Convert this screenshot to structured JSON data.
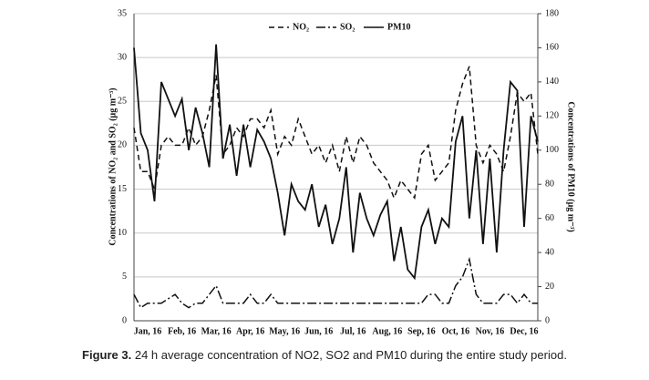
{
  "chart_data": {
    "type": "line",
    "ylabel": "Concentrations of NO₂ and SO₂ (μg m⁻³)",
    "y2label": "Concentrations of PM10 (μg m⁻³)",
    "categories": [
      null,
      null,
      "Jan, 16",
      null,
      null,
      null,
      null,
      "Feb, 16",
      null,
      null,
      null,
      null,
      "Mar, 16",
      null,
      null,
      null,
      null,
      "Apr, 16",
      null,
      null,
      null,
      null,
      "May, 16",
      null,
      null,
      null,
      null,
      "Jun, 16",
      null,
      null,
      null,
      null,
      "Jul, 16",
      null,
      null,
      null,
      null,
      "Aug, 16",
      null,
      null,
      null,
      null,
      "Sep, 16",
      null,
      null,
      null,
      null,
      "Oct, 16",
      null,
      null,
      null,
      null,
      "Nov, 16",
      null,
      null,
      null,
      null,
      "Dec, 16",
      null,
      null
    ],
    "series": [
      {
        "name": "NO₂",
        "color": "#111111",
        "dash": "6,4",
        "values": [
          22,
          17,
          17,
          15,
          20,
          21,
          20,
          20,
          22,
          20,
          21,
          24,
          28,
          19,
          20,
          22,
          21,
          23,
          23,
          22,
          24,
          19,
          21,
          20,
          23,
          21,
          19,
          20,
          18,
          20,
          17,
          21,
          18,
          21,
          20,
          18,
          17,
          16,
          14,
          16,
          15,
          14,
          19,
          20,
          16,
          17,
          18,
          24,
          27,
          29,
          20,
          18,
          20,
          19,
          17,
          21,
          26,
          25,
          26,
          19
        ]
      },
      {
        "name": "SO₂",
        "color": "#111111",
        "dash": "10,3,2,3",
        "values": [
          3,
          1.5,
          2,
          2,
          2,
          2.5,
          3,
          2,
          1.5,
          2,
          2,
          3,
          4,
          2,
          2,
          2,
          2,
          3,
          2,
          2,
          3,
          2,
          2,
          2,
          2,
          2,
          2,
          2,
          2,
          2,
          2,
          2,
          2,
          2,
          2,
          2,
          2,
          2,
          2,
          2,
          2,
          2,
          2,
          3,
          3,
          2,
          2,
          4,
          5,
          7,
          3,
          2,
          2,
          2,
          3,
          3,
          2,
          3,
          2,
          2
        ]
      },
      {
        "name": "PM10",
        "color": "#111111",
        "dash": "none",
        "axis": "y2",
        "values": [
          160,
          110,
          100,
          70,
          140,
          130,
          120,
          130,
          100,
          125,
          110,
          90,
          162,
          95,
          115,
          85,
          115,
          90,
          112,
          105,
          95,
          75,
          50,
          80,
          70,
          65,
          80,
          55,
          68,
          45,
          60,
          90,
          40,
          75,
          60,
          50,
          62,
          70,
          35,
          55,
          30,
          25,
          55,
          65,
          45,
          60,
          55,
          105,
          120,
          60,
          100,
          45,
          95,
          40,
          100,
          140,
          135,
          55,
          120,
          105
        ]
      }
    ],
    "ylim": [
      0,
      35
    ],
    "yticks": [
      0,
      5,
      10,
      15,
      20,
      25,
      30,
      35
    ],
    "y2lim": [
      0,
      180
    ],
    "y2ticks": [
      0,
      20,
      40,
      60,
      80,
      100,
      120,
      140,
      160,
      180
    ],
    "grid": true
  },
  "caption_label": "Figure 3.",
  "caption": "24 h average concentration of NO2, SO2 and PM10 during the entire study period."
}
